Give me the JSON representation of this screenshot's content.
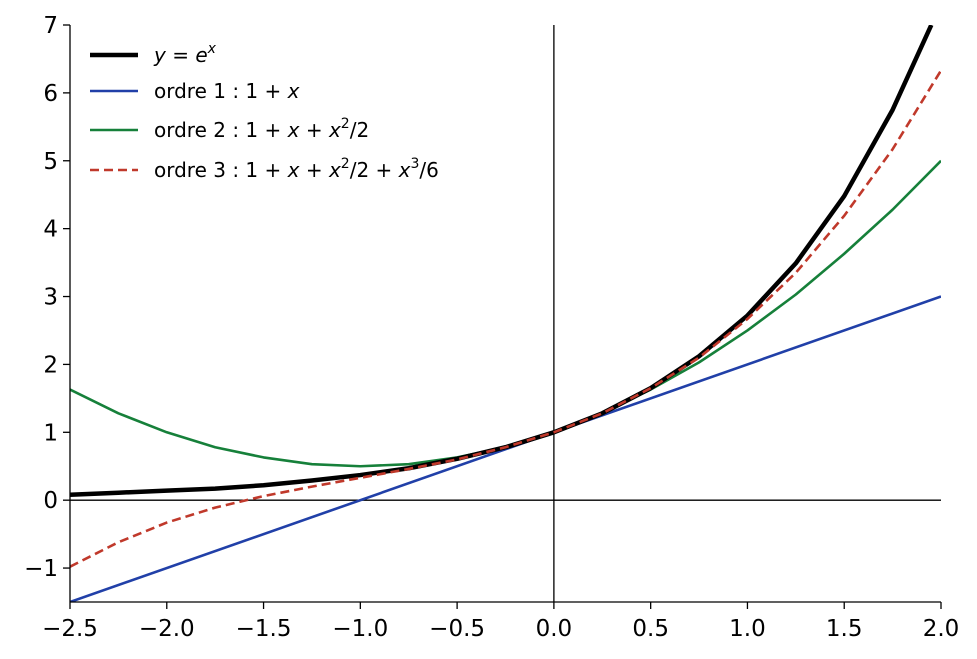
{
  "chart_data": {
    "type": "line",
    "title": "",
    "xlabel": "",
    "ylabel": "",
    "xlim": [
      -2.5,
      2.0
    ],
    "ylim": [
      -1.5,
      7.0
    ],
    "x_ticks": [
      -2.5,
      -2.0,
      -1.5,
      -1.0,
      -0.5,
      0.0,
      0.5,
      1.0,
      1.5,
      2.0
    ],
    "x_tick_labels": [
      "−2.5",
      "−2.0",
      "−1.5",
      "−1.0",
      "−0.5",
      "0.0",
      "0.5",
      "1.0",
      "1.5",
      "2.0"
    ],
    "y_ticks": [
      -1,
      0,
      1,
      2,
      3,
      4,
      5,
      6,
      7
    ],
    "y_tick_labels": [
      "−1",
      "0",
      "1",
      "2",
      "3",
      "4",
      "5",
      "6",
      "7"
    ],
    "grid": false,
    "reference_lines": [
      "x = 0",
      "y = 0"
    ],
    "legend_position": "top-left",
    "series": [
      {
        "name": "y = e^x",
        "color": "#000000",
        "style": "solid",
        "x": [
          -2.5,
          -2.25,
          -2.0,
          -1.75,
          -1.5,
          -1.25,
          -1.0,
          -0.75,
          -0.5,
          -0.25,
          0.0,
          0.25,
          0.5,
          0.75,
          1.0,
          1.25,
          1.5,
          1.75,
          1.95
        ],
        "y": [
          0.08,
          0.11,
          0.14,
          0.17,
          0.22,
          0.29,
          0.37,
          0.47,
          0.61,
          0.78,
          1.0,
          1.28,
          1.65,
          2.12,
          2.72,
          3.49,
          4.48,
          5.75,
          7.0
        ]
      },
      {
        "name": "ordre 1 : 1 + x",
        "color": "#2140a8",
        "style": "solid",
        "x": [
          -2.5,
          2.0
        ],
        "y": [
          -1.5,
          3.0
        ]
      },
      {
        "name": "ordre 2 : 1 + x + x²/2",
        "color": "#16803a",
        "style": "solid",
        "x": [
          -2.5,
          -2.25,
          -2.0,
          -1.75,
          -1.5,
          -1.25,
          -1.0,
          -0.75,
          -0.5,
          -0.25,
          0.0,
          0.25,
          0.5,
          0.75,
          1.0,
          1.25,
          1.5,
          1.75,
          2.0
        ],
        "y": [
          1.63,
          1.28,
          1.0,
          0.78,
          0.63,
          0.53,
          0.5,
          0.53,
          0.63,
          0.78,
          1.0,
          1.28,
          1.63,
          2.03,
          2.5,
          3.03,
          3.63,
          4.28,
          5.0
        ]
      },
      {
        "name": "ordre 3 : 1 + x + x²/2 + x³/6",
        "color": "#c0392b",
        "style": "dashed",
        "x": [
          -2.5,
          -2.25,
          -2.0,
          -1.75,
          -1.5,
          -1.25,
          -1.0,
          -0.75,
          -0.5,
          -0.25,
          0.0,
          0.25,
          0.5,
          0.75,
          1.0,
          1.25,
          1.5,
          1.75,
          2.0
        ],
        "y": [
          -0.98,
          -0.62,
          -0.33,
          -0.11,
          0.06,
          0.2,
          0.33,
          0.46,
          0.6,
          0.78,
          1.0,
          1.28,
          1.65,
          2.1,
          2.67,
          3.35,
          4.19,
          5.17,
          6.33
        ]
      }
    ]
  }
}
